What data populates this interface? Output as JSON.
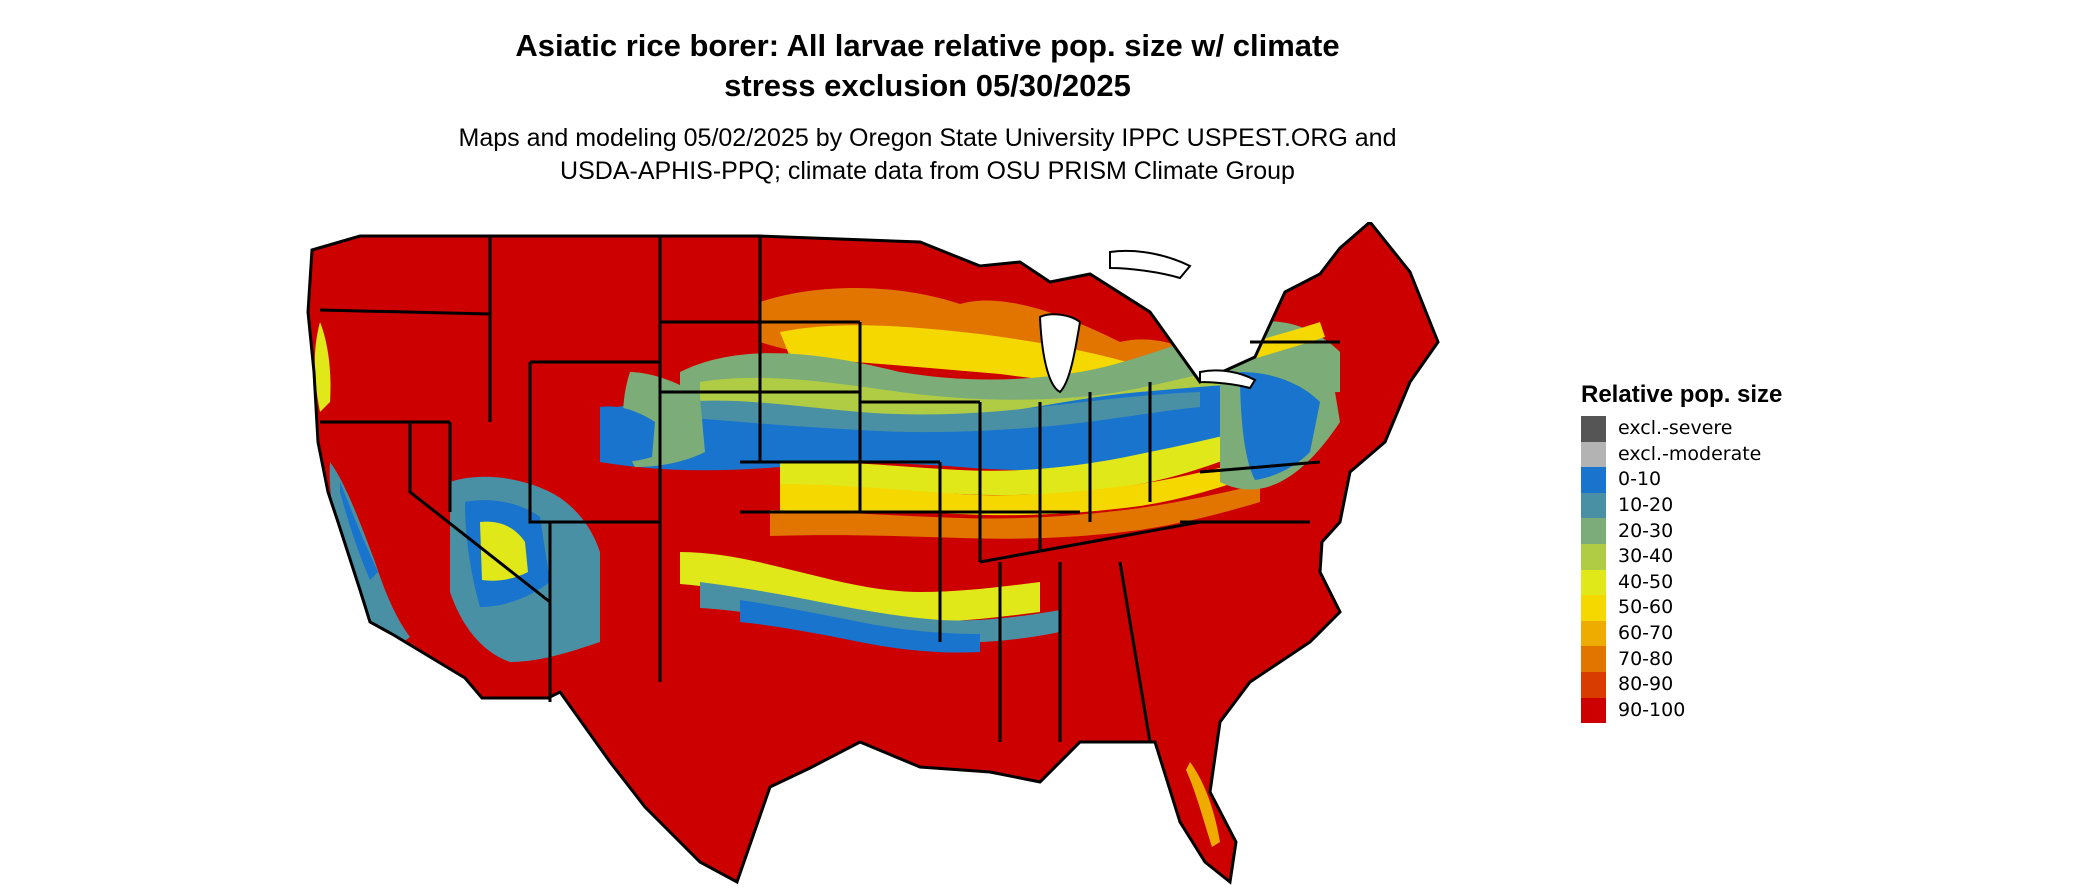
{
  "header": {
    "title_line1": "Asiatic rice borer: All larvae relative pop. size w/ climate",
    "title_line2": "stress exclusion 05/30/2025",
    "subtitle_line1": "Maps and modeling 05/02/2025 by Oregon State University IPPC USPEST.ORG and",
    "subtitle_line2": "USDA-APHIS-PPQ; climate data from OSU PRISM Climate Group"
  },
  "legend": {
    "title": "Relative pop. size",
    "items": [
      {
        "label": "excl.-severe",
        "color": "#555555"
      },
      {
        "label": "excl.-moderate",
        "color": "#b3b3b3"
      },
      {
        "label": "0-10",
        "color": "#1874cd"
      },
      {
        "label": "10-20",
        "color": "#4a90a4"
      },
      {
        "label": "20-30",
        "color": "#7cac78"
      },
      {
        "label": "30-40",
        "color": "#b0cc44"
      },
      {
        "label": "40-50",
        "color": "#e0e81a"
      },
      {
        "label": "50-60",
        "color": "#f5d800"
      },
      {
        "label": "60-70",
        "color": "#eeab00"
      },
      {
        "label": "70-80",
        "color": "#e27400"
      },
      {
        "label": "80-90",
        "color": "#d83c00"
      },
      {
        "label": "90-100",
        "color": "#cd0000"
      }
    ]
  }
}
